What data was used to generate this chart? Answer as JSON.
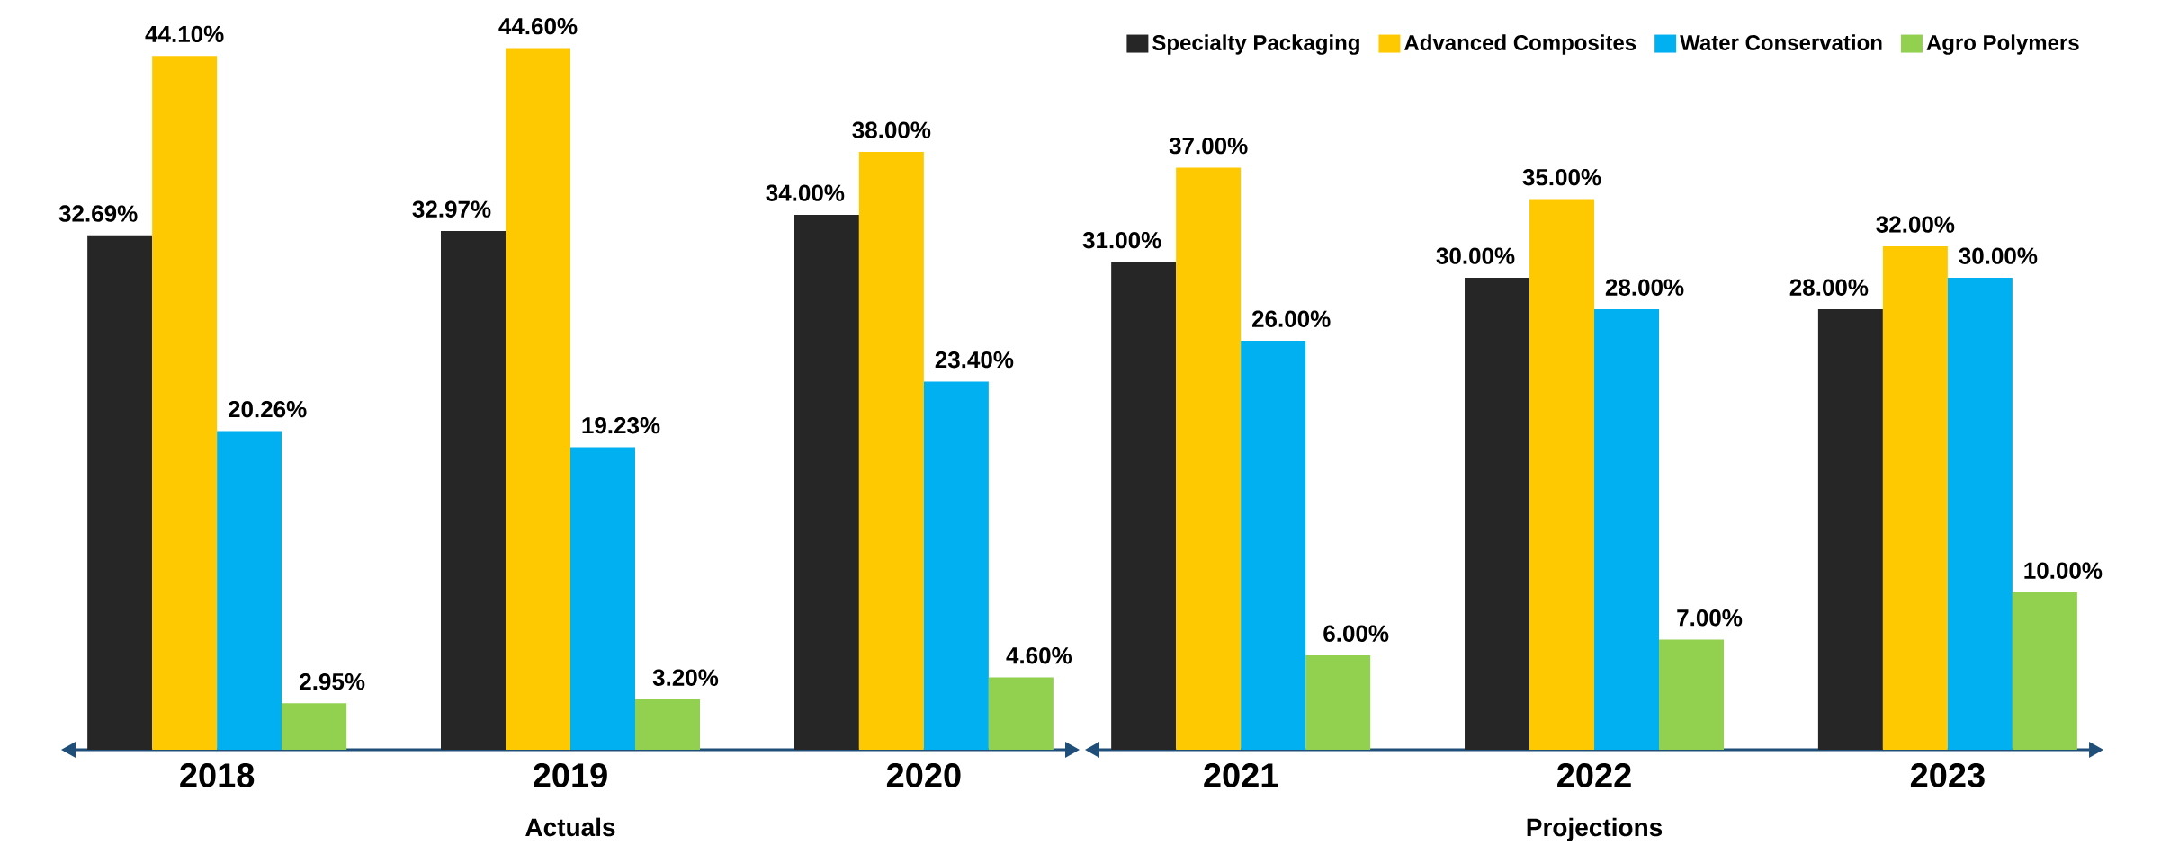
{
  "chart_data": [
    {
      "type": "bar",
      "categories": [
        "2018",
        "2019",
        "2020"
      ],
      "xlabel": "Actuals",
      "series": [
        {
          "color": "#262626",
          "values": [
            32.69,
            32.97,
            34.0
          ],
          "value_labels": [
            "32.69%",
            "32.97%",
            "34.00%"
          ]
        },
        {
          "color": "#ffc900",
          "values": [
            44.1,
            44.6,
            38.0
          ],
          "value_labels": [
            "44.10%",
            "44.60%",
            "38.00%"
          ]
        },
        {
          "color": "#00b0f0",
          "values": [
            20.26,
            19.23,
            23.4
          ],
          "value_labels": [
            "20.26%",
            "19.23%",
            "23.40%"
          ]
        },
        {
          "color": "#92d050",
          "values": [
            2.95,
            3.2,
            4.6
          ],
          "value_labels": [
            "2.95%",
            "3.20%",
            "4.60%"
          ]
        }
      ]
    },
    {
      "type": "bar",
      "categories": [
        "2021",
        "2022",
        "2023"
      ],
      "xlabel": "Projections",
      "legend": "top right",
      "series": [
        {
          "name": "Specialty Packaging",
          "color": "#262626",
          "values": [
            31.0,
            30.0,
            28.0
          ],
          "value_labels": [
            "31.00%",
            "30.00%",
            "28.00%"
          ]
        },
        {
          "name": "Advanced Composites",
          "color": "#ffc900",
          "values": [
            37.0,
            35.0,
            32.0
          ],
          "value_labels": [
            "37.00%",
            "35.00%",
            "32.00%"
          ]
        },
        {
          "name": "Water Conservation",
          "color": "#00b0f0",
          "values": [
            26.0,
            28.0,
            30.0
          ],
          "value_labels": [
            "26.00%",
            "28.00%",
            "30.00%"
          ]
        },
        {
          "name": "Agro Polymers",
          "color": "#92d050",
          "values": [
            6.0,
            7.0,
            10.0
          ],
          "value_labels": [
            "6.00%",
            "7.00%",
            "10.00%"
          ]
        }
      ]
    }
  ]
}
